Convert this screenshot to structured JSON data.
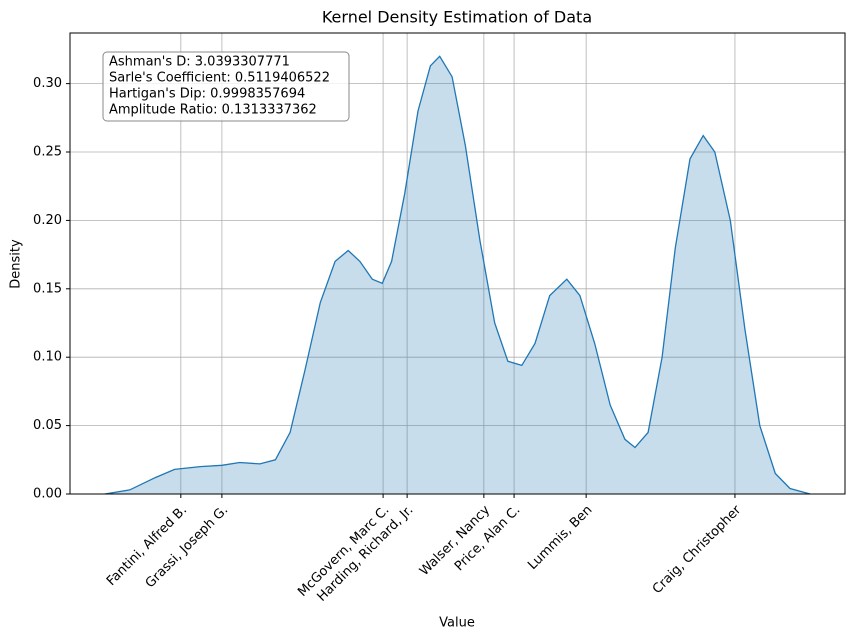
{
  "chart_data": {
    "type": "area",
    "title": "Kernel Density Estimation of Data",
    "xlabel": "Value",
    "ylabel": "Density",
    "annotation": [
      "Ashman's D: 3.0393307771",
      "Sarle's Coefficient: 0.5119406522",
      "Hartigan's Dip: 0.9998357694",
      "Amplitude Ratio: 0.1313337362"
    ],
    "color": "#1f77b4",
    "grid": true,
    "xlim": [
      0,
      100
    ],
    "ylim": [
      0,
      0.337
    ],
    "xticks": [
      {
        "value": 14.3,
        "label": "Fantini, Alfred B."
      },
      {
        "value": 19.6,
        "label": "Grassi, Joseph G."
      },
      {
        "value": 40.4,
        "label": "McGovern, Marc C."
      },
      {
        "value": 43.5,
        "label": "Harding, Richard, Jr."
      },
      {
        "value": 53.4,
        "label": "Walser, Nancy"
      },
      {
        "value": 57.3,
        "label": "Price, Alan C."
      },
      {
        "value": 66.6,
        "label": "Lummis, Ben"
      },
      {
        "value": 85.8,
        "label": "Craig, Christopher"
      }
    ],
    "yticks": [
      {
        "value": 0,
        "label": "0.00"
      },
      {
        "value": 0.05,
        "label": "0.05"
      },
      {
        "value": 0.1,
        "label": "0.10"
      },
      {
        "value": 0.15,
        "label": "0.15"
      },
      {
        "value": 0.2,
        "label": "0.20"
      },
      {
        "value": 0.25,
        "label": "0.25"
      },
      {
        "value": 0.3,
        "label": "0.30"
      }
    ],
    "x": [
      4.5,
      7.7,
      11.0,
      13.5,
      16.8,
      19.6,
      21.9,
      24.5,
      26.5,
      28.4,
      30.3,
      32.3,
      34.2,
      35.9,
      37.4,
      39.0,
      40.3,
      41.5,
      43.2,
      44.9,
      46.5,
      47.7,
      49.3,
      51.0,
      52.9,
      54.8,
      56.5,
      58.3,
      60.0,
      61.9,
      64.1,
      65.8,
      67.7,
      69.7,
      71.6,
      72.9,
      74.6,
      76.4,
      78.1,
      80.0,
      81.7,
      83.2,
      85.2,
      87.1,
      89.0,
      91.0,
      92.9,
      95.5
    ],
    "values": [
      0,
      0.003,
      0.012,
      0.018,
      0.02,
      0.021,
      0.023,
      0.022,
      0.025,
      0.045,
      0.09,
      0.14,
      0.17,
      0.178,
      0.17,
      0.157,
      0.154,
      0.17,
      0.22,
      0.28,
      0.313,
      0.32,
      0.305,
      0.255,
      0.185,
      0.125,
      0.097,
      0.094,
      0.11,
      0.145,
      0.157,
      0.145,
      0.11,
      0.065,
      0.04,
      0.034,
      0.045,
      0.1,
      0.18,
      0.245,
      0.262,
      0.25,
      0.2,
      0.12,
      0.05,
      0.015,
      0.004,
      0
    ]
  }
}
